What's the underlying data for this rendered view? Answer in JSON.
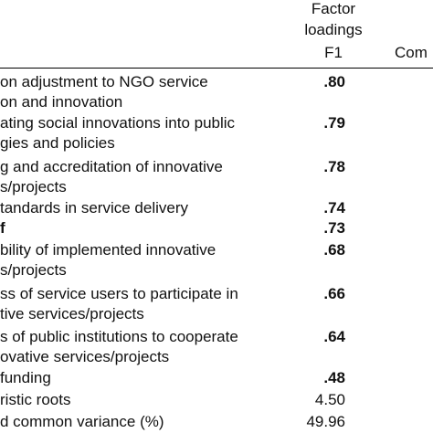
{
  "header": {
    "factor": [
      "Factor",
      "loadings",
      "F1"
    ],
    "next": "Com"
  },
  "rows": [
    {
      "label": [
        "on adjustment to NGO service",
        "on and innovation"
      ],
      "value": ".80",
      "bold": true
    },
    {
      "label": [
        "ating social innovations into public",
        "gies and policies"
      ],
      "value": ".79",
      "bold": true
    },
    {
      "label": [
        "g and accreditation of innovative",
        "s/projects"
      ],
      "value": ".78",
      "bold": true
    },
    {
      "label": [
        "tandards in service delivery"
      ],
      "value": ".74",
      "bold": true
    },
    {
      "label": [
        "f"
      ],
      "value": ".73",
      "bold": true
    },
    {
      "label": [
        "bility of implemented innovative",
        "s/projects"
      ],
      "value": ".68",
      "bold": true
    },
    {
      "label": [
        "ss of service users to participate in",
        "tive services/projects"
      ],
      "value": ".66",
      "bold": true
    },
    {
      "label": [
        "s of public institutions to cooperate",
        "ovative services/projects"
      ],
      "value": ".64",
      "bold": true
    },
    {
      "label": [
        "funding"
      ],
      "value": ".48",
      "bold": true
    },
    {
      "label": [
        "ristic roots"
      ],
      "value": "4.50",
      "bold": false
    },
    {
      "label": [
        "d common variance (%)"
      ],
      "value": "49.96",
      "bold": false
    }
  ]
}
